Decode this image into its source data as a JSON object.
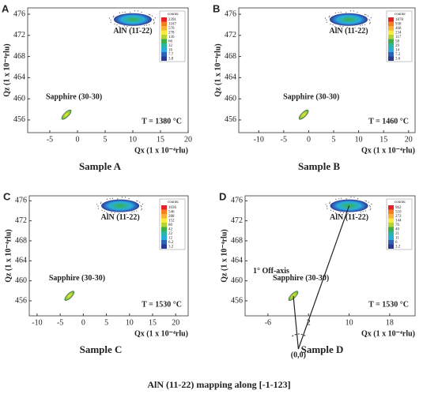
{
  "chart_data": [
    {
      "type": "map",
      "panel": "A",
      "caption": "Sample A",
      "xlabel": "Qx (1 x 10⁻⁴rlu)",
      "ylabel": "Qz (1 x 10⁻⁴rlu)",
      "xlim": [
        -9,
        20
      ],
      "ylim": [
        453.6,
        477.2
      ],
      "xticks": [
        -5,
        0,
        5,
        10,
        15,
        20
      ],
      "yticks": [
        456,
        460,
        464,
        468,
        472,
        476
      ],
      "annotation": "T = 1380 °C",
      "colorbar": {
        "title": "counts:",
        "ticks": [
          2391,
          1167,
          570,
          278,
          136,
          66,
          32,
          16,
          7.7,
          3.8
        ],
        "colors": [
          "#e8202a",
          "#f57f20",
          "#f9b233",
          "#fbe93c",
          "#b5d334",
          "#3fae49",
          "#2bb3a4",
          "#29abe2",
          "#2e62b5",
          "#2b3990"
        ]
      },
      "peaks": [
        {
          "name": "AlN (11-22)",
          "x": 10,
          "y": 475
        },
        {
          "name": "Sapphire (30-30)",
          "x": -2,
          "y": 457
        }
      ]
    },
    {
      "type": "map",
      "panel": "B",
      "caption": "Sample B",
      "xlabel": "Qx (1 x 10⁻⁴rlu)",
      "ylabel": "Qz (1 x 10⁻⁴rlu)",
      "xlim": [
        -14,
        21.3
      ],
      "ylim": [
        453.6,
        477.2
      ],
      "xticks": [
        -10,
        -5,
        0,
        5,
        10,
        15,
        20
      ],
      "yticks": [
        456,
        460,
        464,
        468,
        472,
        476
      ],
      "annotation": "T = 1460 °C",
      "colorbar": {
        "title": "counts:",
        "ticks": [
          1878,
          938,
          468,
          234,
          117,
          58,
          29,
          14,
          7.2,
          3.6
        ],
        "colors": [
          "#e8202a",
          "#f57f20",
          "#f9b233",
          "#fbe93c",
          "#b5d334",
          "#3fae49",
          "#2bb3a4",
          "#29abe2",
          "#2e62b5",
          "#2b3990"
        ]
      },
      "peaks": [
        {
          "name": "AlN (11-22)",
          "x": 8,
          "y": 475
        },
        {
          "name": "Sapphire (30-30)",
          "x": -1,
          "y": 457
        }
      ]
    },
    {
      "type": "map",
      "panel": "C",
      "caption": "Sample C",
      "xlabel": "Qx (1 x 10⁻⁴rlu)",
      "ylabel": "Qz (1 x 10⁻⁴rlu)",
      "xlim": [
        -11.7,
        22.7
      ],
      "ylim": [
        453,
        477
      ],
      "xticks": [
        -10,
        -5,
        0,
        5,
        10,
        15,
        20
      ],
      "yticks": [
        456,
        460,
        464,
        468,
        472,
        476
      ],
      "annotation": "T = 1530 °C",
      "colorbar": {
        "title": "counts:",
        "ticks": [
          1036,
          546,
          288,
          152,
          80,
          42,
          22,
          12,
          6.2,
          3.2
        ],
        "colors": [
          "#e8202a",
          "#f57f20",
          "#f9b233",
          "#fbe93c",
          "#b5d334",
          "#3fae49",
          "#2bb3a4",
          "#29abe2",
          "#2e62b5",
          "#2b3990"
        ]
      },
      "peaks": [
        {
          "name": "AlN (11-22)",
          "x": 8,
          "y": 475
        },
        {
          "name": "Sapphire (30-30)",
          "x": -3,
          "y": 457
        }
      ]
    },
    {
      "type": "map",
      "panel": "D",
      "caption": "Sample D",
      "xlabel": "Qx (1 x 10⁻⁴rlu)",
      "ylabel": "Qz (1 x 10⁻⁴rlu)",
      "xlim": [
        -10.5,
        23
      ],
      "ylim": [
        453,
        477
      ],
      "xticks": [
        -6,
        2,
        10,
        18
      ],
      "yticks": [
        456,
        460,
        464,
        468,
        472,
        476
      ],
      "annotation": "T = 1530 °C",
      "off_axis_label": "1° Off-axis",
      "origin_label": "(0,0)",
      "colorbar": {
        "title": "counts:",
        "ticks": [
          962,
          510,
          273,
          144,
          76,
          40,
          21,
          11,
          6,
          3.2
        ],
        "colors": [
          "#e8202a",
          "#f57f20",
          "#f9b233",
          "#fbe93c",
          "#b5d334",
          "#3fae49",
          "#2bb3a4",
          "#29abe2",
          "#2e62b5",
          "#2b3990"
        ]
      },
      "peaks": [
        {
          "name": "AlN (11-22)",
          "x": 10,
          "y": 475
        },
        {
          "name": "Sapphire (30-30)",
          "x": -1,
          "y": 457
        }
      ]
    }
  ],
  "figure_caption": "AlN (11-22) mapping along [-1-123]"
}
